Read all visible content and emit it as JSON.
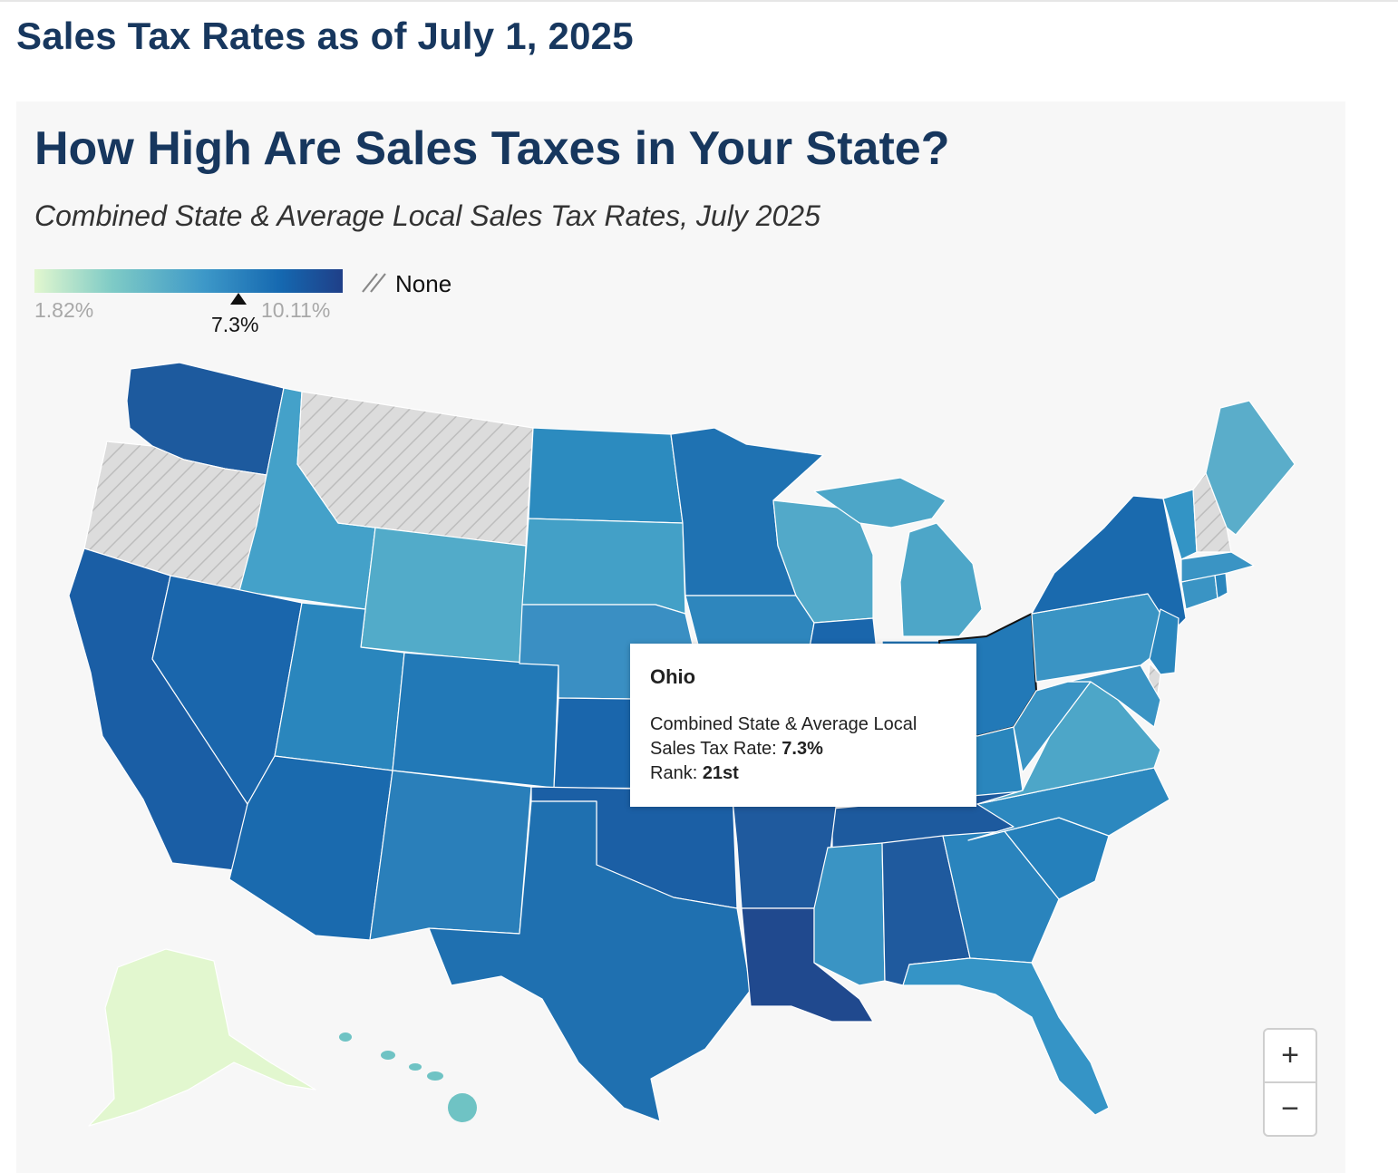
{
  "page": {
    "heading": "Sales Tax Rates as of July 1, 2025"
  },
  "map": {
    "title": "How High Are Sales Taxes in Your State?",
    "subtitle": "Combined State & Average Local Sales Tax Rates, July 2025",
    "legend": {
      "min": "1.82%",
      "max": "10.11%",
      "current": "7.3%",
      "none_label": "None",
      "current_value": 7.3,
      "min_value": 1.82,
      "max_value": 10.11
    },
    "colors": {
      "low": "#e2f7cf",
      "mid": "#3d98c8",
      "high": "#1f3f88",
      "none": "#dcdcdc"
    },
    "tooltip": {
      "state": "Ohio",
      "rate_label_line1": "Combined State & Average Local",
      "rate_label_line2": "Sales Tax Rate: ",
      "rate_value": "7.3%",
      "rank_label": "Rank: ",
      "rank_value": "21st"
    },
    "zoom": {
      "in": "+",
      "out": "−"
    }
  }
}
